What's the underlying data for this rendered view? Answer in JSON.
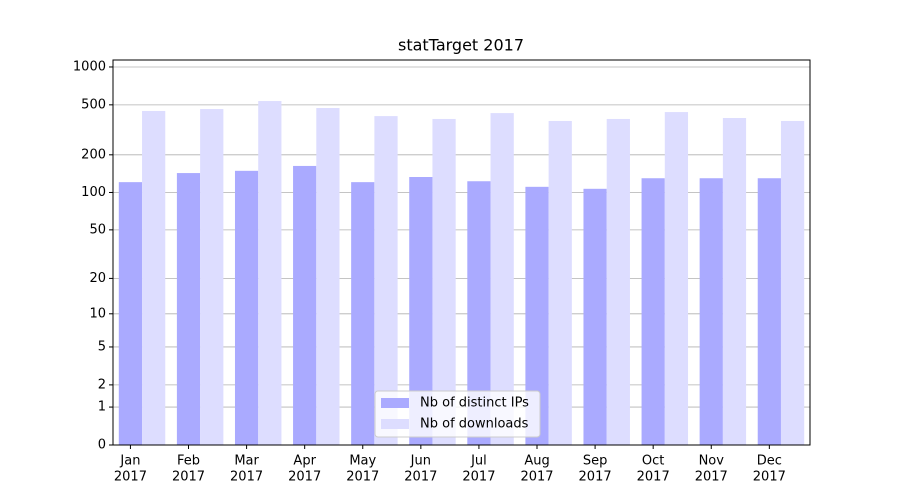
{
  "chart_data": {
    "type": "bar",
    "title": "statTarget 2017",
    "scale": "log1p",
    "categories": [
      [
        "Jan",
        "2017"
      ],
      [
        "Feb",
        "2017"
      ],
      [
        "Mar",
        "2017"
      ],
      [
        "Apr",
        "2017"
      ],
      [
        "May",
        "2017"
      ],
      [
        "Jun",
        "2017"
      ],
      [
        "Jul",
        "2017"
      ],
      [
        "Aug",
        "2017"
      ],
      [
        "Sep",
        "2017"
      ],
      [
        "Oct",
        "2017"
      ],
      [
        "Nov",
        "2017"
      ],
      [
        "Dec",
        "2017"
      ]
    ],
    "series": [
      {
        "name": "Nb of distinct IPs",
        "color": "#aaaaff",
        "values": [
          121,
          143,
          149,
          163,
          121,
          133,
          123,
          111,
          107,
          130,
          130,
          130
        ]
      },
      {
        "name": "Nb of downloads",
        "color": "#ddddff",
        "values": [
          447,
          463,
          536,
          472,
          407,
          386,
          430,
          372,
          386,
          438,
          393,
          372
        ]
      }
    ],
    "ylim": [
      0,
      1136
    ],
    "yticks": [
      0,
      1,
      2,
      5,
      10,
      20,
      50,
      100,
      200,
      500,
      1000
    ],
    "grid": true,
    "legend": "lower center"
  }
}
